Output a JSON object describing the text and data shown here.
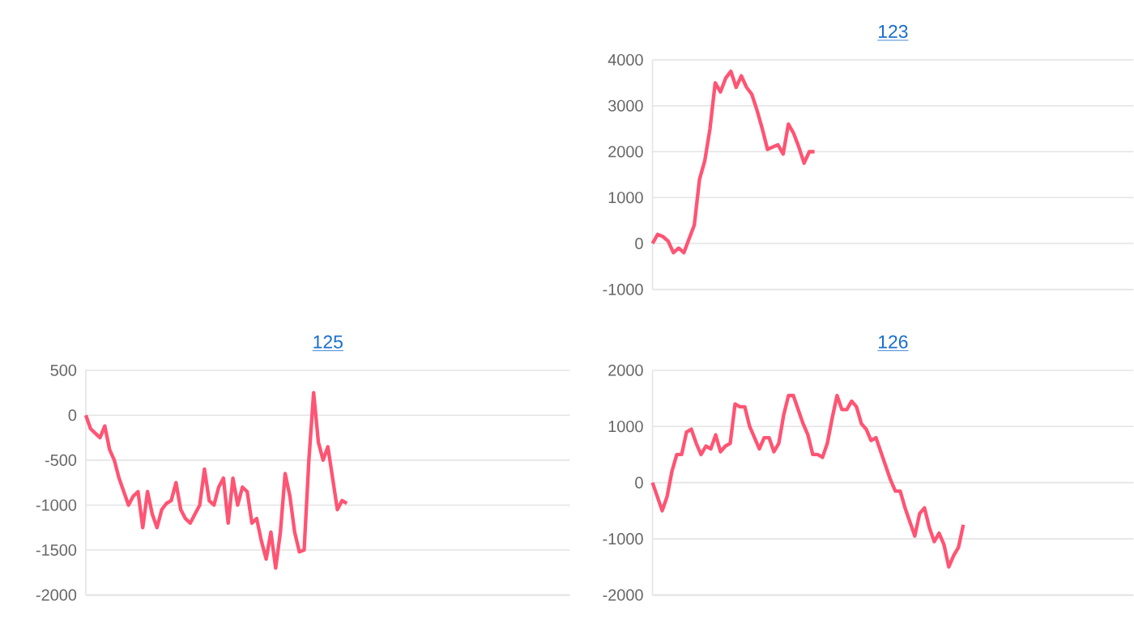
{
  "chart_data": [
    {
      "type": "line",
      "title": "123",
      "color": "#ff5473",
      "grid": "y",
      "ylim": [
        -1000,
        4000
      ],
      "yticks": [
        -1000,
        0,
        1000,
        2000,
        3000,
        4000
      ],
      "categories": [
        null,
        null,
        null,
        null,
        null,
        null,
        null,
        null,
        null,
        null,
        null,
        null,
        null,
        null,
        null,
        null,
        null,
        null,
        null,
        null,
        null,
        null,
        null,
        null,
        null,
        null,
        null,
        null,
        null,
        null,
        null,
        null,
        null,
        null,
        null,
        null,
        null,
        null,
        null,
        null,
        null,
        null,
        null,
        null,
        null,
        null,
        null,
        null,
        null,
        null,
        null,
        null,
        null,
        null,
        null,
        null,
        null,
        null,
        null,
        null,
        null,
        null,
        null,
        null,
        null,
        null,
        null,
        null,
        null,
        null,
        null,
        null,
        null,
        null,
        null,
        null,
        null,
        null,
        null,
        null,
        null,
        null,
        null,
        null,
        null,
        null,
        null,
        null,
        null,
        null,
        null,
        null,
        null
      ],
      "values": [
        0,
        200,
        150,
        50,
        -200,
        -100,
        -200,
        100,
        400,
        1400,
        1800,
        2500,
        3500,
        3300,
        3600,
        3750,
        3400,
        3650,
        3400,
        3250,
        2900,
        2500,
        2050,
        2100,
        2150,
        1950,
        2600,
        2400,
        2100,
        1750,
        2000,
        2000,
        null,
        null,
        null,
        null,
        null,
        null,
        null,
        null,
        null,
        null,
        null,
        null,
        null,
        null,
        null,
        null,
        null,
        null,
        null,
        null,
        null,
        null,
        null,
        null,
        null,
        null,
        null,
        null,
        null,
        null,
        null,
        null,
        null,
        null,
        null,
        null,
        null,
        null,
        null,
        null,
        null,
        null,
        null,
        null,
        null,
        null,
        null,
        null,
        null,
        null,
        null,
        null,
        null,
        null,
        null,
        null,
        null,
        null,
        null,
        null,
        null
      ]
    },
    {
      "type": "line",
      "title": "125",
      "color": "#ff5473",
      "grid": "y",
      "ylim": [
        -2000,
        500
      ],
      "yticks": [
        -2000,
        -1500,
        -1000,
        -500,
        0,
        500
      ],
      "categories": [
        null,
        null,
        null,
        null,
        null,
        null,
        null,
        null,
        null,
        null,
        null,
        null,
        null,
        null,
        null,
        null,
        null,
        null,
        null,
        null,
        null,
        null,
        null,
        null,
        null,
        null,
        null,
        null,
        null,
        null,
        null,
        null,
        null,
        null,
        null,
        null,
        null,
        null,
        null,
        null,
        null,
        null,
        null,
        null,
        null,
        null,
        null,
        null,
        null,
        null,
        null,
        null,
        null,
        null,
        null,
        null,
        null,
        null,
        null,
        null,
        null,
        null,
        null,
        null,
        null,
        null,
        null,
        null,
        null,
        null,
        null,
        null,
        null,
        null,
        null,
        null,
        null,
        null,
        null,
        null,
        null,
        null,
        null,
        null,
        null,
        null,
        null,
        null,
        null,
        null,
        null,
        null,
        null,
        null,
        null,
        null,
        null,
        null,
        null,
        null,
        null,
        null,
        null
      ],
      "values": [
        0,
        -150,
        -200,
        -250,
        -120,
        -380,
        -500,
        -700,
        -850,
        -1000,
        -900,
        -850,
        -1250,
        -850,
        -1100,
        -1250,
        -1050,
        -980,
        -950,
        -750,
        -1050,
        -1150,
        -1200,
        -1100,
        -1000,
        -600,
        -950,
        -1000,
        -800,
        -700,
        -1200,
        -700,
        -1000,
        -800,
        -850,
        -1200,
        -1150,
        -1400,
        -1600,
        -1300,
        -1700,
        -1300,
        -650,
        -900,
        -1300,
        -1520,
        -1500,
        -500,
        250,
        -300,
        -500,
        -350,
        -700,
        -1050,
        -950,
        -980,
        null,
        null,
        null,
        null,
        null,
        null,
        null,
        null,
        null,
        null,
        null,
        null,
        null,
        null,
        null,
        null,
        null,
        null,
        null,
        null,
        null,
        null,
        null,
        null,
        null,
        null,
        null,
        null,
        null,
        null,
        null,
        null,
        null,
        null,
        null,
        null,
        null,
        null,
        null,
        null,
        null,
        null,
        null,
        null,
        null,
        null,
        null
      ]
    },
    {
      "type": "line",
      "title": "126",
      "color": "#ff5473",
      "grid": "y",
      "ylim": [
        -2000,
        2000
      ],
      "yticks": [
        -2000,
        -1000,
        0,
        1000,
        2000
      ],
      "categories": [
        null,
        null,
        null,
        null,
        null,
        null,
        null,
        null,
        null,
        null,
        null,
        null,
        null,
        null,
        null,
        null,
        null,
        null,
        null,
        null,
        null,
        null,
        null,
        null,
        null,
        null,
        null,
        null,
        null,
        null,
        null,
        null,
        null,
        null,
        null,
        null,
        null,
        null,
        null,
        null,
        null,
        null,
        null,
        null,
        null,
        null,
        null,
        null,
        null,
        null,
        null,
        null,
        null,
        null,
        null,
        null,
        null,
        null,
        null,
        null,
        null,
        null,
        null,
        null,
        null,
        null,
        null,
        null,
        null,
        null,
        null,
        null,
        null,
        null,
        null,
        null,
        null,
        null,
        null,
        null,
        null,
        null,
        null,
        null,
        null,
        null,
        null,
        null,
        null,
        null,
        null,
        null,
        null,
        null,
        null,
        null,
        null,
        null,
        null,
        null
      ],
      "values": [
        0,
        -250,
        -500,
        -250,
        200,
        500,
        500,
        900,
        950,
        700,
        500,
        650,
        600,
        850,
        550,
        650,
        700,
        1400,
        1350,
        1350,
        1000,
        800,
        600,
        800,
        800,
        550,
        700,
        1200,
        1550,
        1550,
        1300,
        1050,
        850,
        500,
        500,
        450,
        700,
        1150,
        1550,
        1300,
        1300,
        1450,
        1350,
        1050,
        950,
        750,
        800,
        550,
        300,
        50,
        -150,
        -150,
        -450,
        -700,
        -950,
        -550,
        -450,
        -800,
        -1050,
        -900,
        -1100,
        -1500,
        -1300,
        -1150,
        -750,
        null,
        null,
        null,
        null,
        null,
        null,
        null,
        null,
        null,
        null,
        null,
        null,
        null,
        null,
        null,
        null,
        null,
        null,
        null,
        null,
        null,
        null,
        null,
        null,
        null,
        null,
        null,
        null,
        null,
        null,
        null,
        null,
        null,
        null,
        null
      ]
    }
  ]
}
